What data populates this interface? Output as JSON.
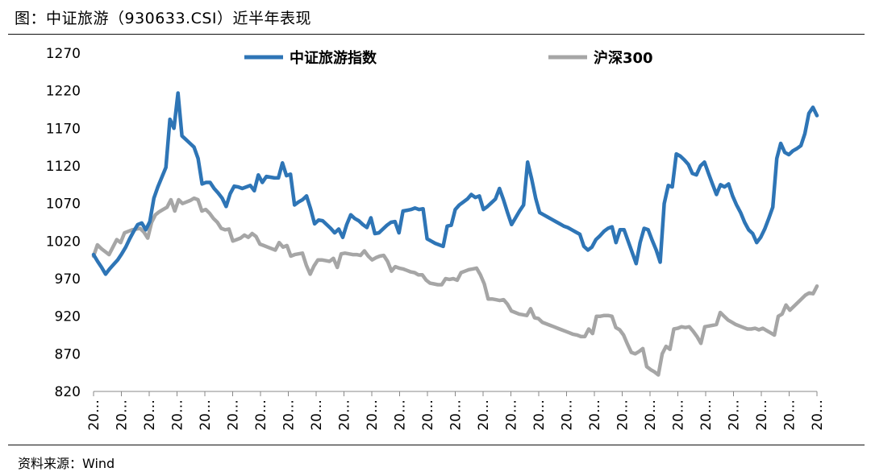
{
  "figure": {
    "title": "图：中证旅游（930633.CSI）近半年表现",
    "source": "资料来源：Wind"
  },
  "colors": {
    "series1": "#2e75b6",
    "series2": "#a6a6a6",
    "axis": "#888888"
  },
  "chart_data": {
    "type": "line",
    "title": "",
    "xlabel": "",
    "ylabel": "",
    "ylim": [
      820,
      1270
    ],
    "yticks": [
      820,
      870,
      920,
      970,
      1020,
      1070,
      1120,
      1170,
      1220,
      1270
    ],
    "xtick_labels": [
      "20…",
      "20…",
      "20…",
      "20…",
      "20…",
      "20…",
      "20…",
      "20…",
      "20…",
      "20…",
      "20…",
      "20…",
      "20…",
      "20…",
      "20…",
      "20…",
      "20…",
      "20…",
      "20…",
      "20…",
      "20…",
      "20…",
      "20…",
      "20…",
      "20…",
      "20…",
      "20…"
    ],
    "legend_position": "top",
    "series": [
      {
        "name": "中证旅游指数",
        "color": "#2e75b6",
        "values": [
          1002,
          993,
          985,
          976,
          983,
          989,
          995,
          1003,
          1012,
          1023,
          1033,
          1042,
          1044,
          1035,
          1046,
          1077,
          1092,
          1105,
          1118,
          1182,
          1170,
          1217,
          1160,
          1155,
          1150,
          1145,
          1130,
          1096,
          1098,
          1098,
          1090,
          1084,
          1077,
          1066,
          1083,
          1093,
          1092,
          1090,
          1092,
          1094,
          1087,
          1108,
          1098,
          1106,
          1105,
          1104,
          1104,
          1124,
          1107,
          1109,
          1068,
          1072,
          1075,
          1080,
          1063,
          1043,
          1048,
          1047,
          1042,
          1037,
          1031,
          1036,
          1025,
          1042,
          1055,
          1050,
          1047,
          1042,
          1038,
          1051,
          1030,
          1031,
          1036,
          1041,
          1045,
          1046,
          1031,
          1060,
          1061,
          1062,
          1064,
          1062,
          1063,
          1023,
          1020,
          1017,
          1015,
          1013,
          1040,
          1041,
          1062,
          1068,
          1072,
          1076,
          1082,
          1078,
          1080,
          1062,
          1066,
          1071,
          1076,
          1090,
          1075,
          1058,
          1042,
          1051,
          1060,
          1068,
          1125,
          1103,
          1077,
          1058,
          1055,
          1052,
          1049,
          1046,
          1043,
          1040,
          1038,
          1035,
          1032,
          1029,
          1013,
          1008,
          1012,
          1022,
          1027,
          1033,
          1037,
          1039,
          1018,
          1035,
          1035,
          1020,
          1005,
          990,
          1018,
          1037,
          1035,
          1021,
          1008,
          992,
          1070,
          1094,
          1092,
          1136,
          1133,
          1128,
          1122,
          1110,
          1108,
          1120,
          1125,
          1110,
          1096,
          1082,
          1095,
          1092,
          1096,
          1080,
          1068,
          1058,
          1045,
          1035,
          1030,
          1018,
          1025,
          1036,
          1050,
          1065,
          1130,
          1150,
          1138,
          1135,
          1140,
          1143,
          1147,
          1163,
          1190,
          1198,
          1187
        ]
      },
      {
        "name": "沪深300",
        "color": "#a6a6a6",
        "values": [
          1000,
          1015,
          1010,
          1006,
          1002,
          1012,
          1022,
          1018,
          1031,
          1033,
          1035,
          1036,
          1037,
          1032,
          1024,
          1045,
          1055,
          1059,
          1062,
          1065,
          1075,
          1060,
          1075,
          1070,
          1072,
          1074,
          1077,
          1075,
          1060,
          1062,
          1057,
          1050,
          1045,
          1037,
          1035,
          1036,
          1020,
          1022,
          1024,
          1028,
          1025,
          1030,
          1026,
          1016,
          1014,
          1012,
          1010,
          1008,
          1018,
          1012,
          1014,
          1000,
          1002,
          1003,
          1004,
          988,
          976,
          987,
          995,
          995,
          994,
          993,
          997,
          985,
          1003,
          1004,
          1003,
          1002,
          1002,
          1001,
          1007,
          1000,
          995,
          998,
          1000,
          1001,
          993,
          980,
          986,
          984,
          983,
          981,
          979,
          978,
          975,
          975,
          968,
          964,
          963,
          962,
          962,
          970,
          969,
          970,
          968,
          978,
          980,
          982,
          983,
          984,
          975,
          963,
          943,
          943,
          942,
          941,
          942,
          936,
          927,
          925,
          923,
          922,
          921,
          930,
          918,
          917,
          912,
          910,
          908,
          906,
          904,
          902,
          900,
          898,
          896,
          895,
          893,
          893,
          903,
          897,
          920,
          920,
          921,
          921,
          920,
          905,
          902,
          895,
          883,
          872,
          870,
          873,
          877,
          853,
          849,
          846,
          842,
          870,
          880,
          876,
          903,
          904,
          906,
          905,
          906,
          900,
          893,
          884,
          906,
          907,
          908,
          909,
          925,
          920,
          915,
          912,
          909,
          907,
          905,
          903,
          903,
          904,
          902,
          904,
          901,
          898,
          895,
          920,
          923,
          935,
          928,
          933,
          938,
          943,
          948,
          951,
          950,
          960
        ]
      }
    ]
  }
}
